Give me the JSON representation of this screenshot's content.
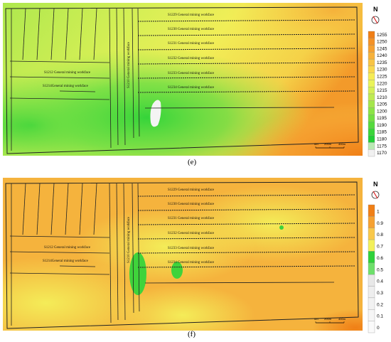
{
  "panels": [
    {
      "id": "e",
      "label": "(e)",
      "legend": {
        "ticks": [
          "1255",
          "1250",
          "1245",
          "1240",
          "1235",
          "1230",
          "1225",
          "1220",
          "1215",
          "1210",
          "1205",
          "1200",
          "1195",
          "1190",
          "1185",
          "1180",
          "1175",
          "1170"
        ],
        "colors": [
          "#f07f16",
          "#f49227",
          "#f6a131",
          "#f7b23c",
          "#f8c444",
          "#f9d84d",
          "#f6ec55",
          "#eaf45a",
          "#d5f056",
          "#bfeb52",
          "#a5e64c",
          "#8be446",
          "#72e042",
          "#55db3d",
          "#3ad53a",
          "#22cf36",
          "#b9e9b3",
          "#f1f1f1"
        ]
      },
      "faces": {
        "s1229": "S1229 General mining workface",
        "s1230": "S1230 General mining workface",
        "s1231": "S1231 General mining workface",
        "s1232": "S1232 General mining workface",
        "s1233": "S1233 General mining workface",
        "s1234": "S1234 General mining workface",
        "s1212": "S1212 General mining workface",
        "s1214": "S1214General mining workface",
        "s1210": "S1210 General mining workface"
      },
      "scale": [
        "0m",
        "200m",
        "400m"
      ],
      "north": "N"
    },
    {
      "id": "f",
      "label": "(f)",
      "legend": {
        "ticks": [
          "1",
          "0.9",
          "0.8",
          "0.7",
          "0.6",
          "0.5",
          "0.4",
          "0.3",
          "0.2",
          "0.1",
          "0"
        ],
        "colors": [
          "#f07f16",
          "#f6a131",
          "#f9c84a",
          "#f3f05a",
          "#2fd23a",
          "#6ee06b",
          "#e8e8e8",
          "#eeeeee",
          "#f2f2f2",
          "#f6f6f6",
          "#fafafa"
        ]
      },
      "faces": {
        "s1229": "S1229 General mining workface",
        "s1230": "S1230 General mining workface",
        "s1231": "S1231 General mining workface",
        "s1232": "S1232 General mining workface",
        "s1233": "S1233 General mining workface",
        "s1234": "S1234 General mining workface",
        "s1212": "S1212 General mining workface",
        "s1214": "S1214General mining workface",
        "s1210": "S1210 General mining workface"
      },
      "scale": [
        "0m",
        "200m",
        "400m"
      ],
      "north": "N"
    }
  ]
}
